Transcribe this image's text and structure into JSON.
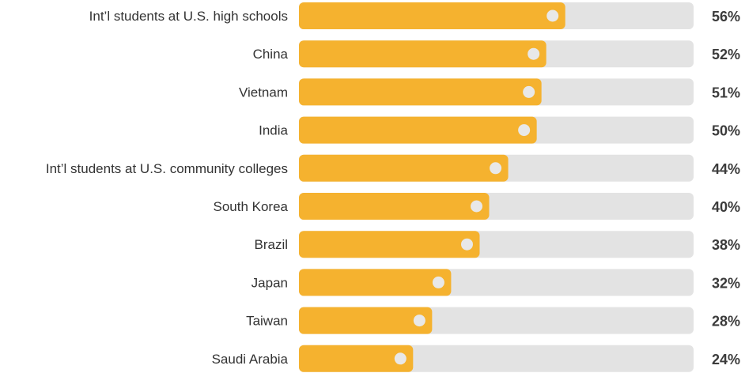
{
  "chart_data": {
    "type": "bar",
    "orientation": "horizontal",
    "categories": [
      "Int’l students at U.S. high schools",
      "China",
      "Vietnam",
      "India",
      "Int’l students at U.S. community colleges",
      "South Korea",
      "Brazil",
      "Japan",
      "Taiwan",
      "Saudi Arabia"
    ],
    "values": [
      56,
      52,
      51,
      50,
      44,
      40,
      38,
      32,
      28,
      24
    ],
    "value_labels": [
      "56%",
      "52%",
      "51%",
      "50%",
      "44%",
      "40%",
      "38%",
      "32%",
      "28%",
      "24%"
    ],
    "xlim": [
      0,
      100
    ],
    "grid": false,
    "title": "",
    "xlabel": "",
    "ylabel": ""
  },
  "colors": {
    "fill": "#f5b22f",
    "track": "#e3e3e3",
    "marker": "#e8e8e8",
    "label_text": "#333333",
    "value_text": "#3b3b3b"
  }
}
